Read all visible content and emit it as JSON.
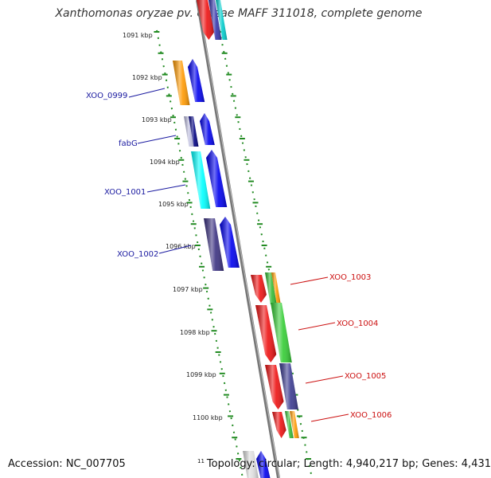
{
  "title": "Xanthomonas oryzae pv. oryzae MAFF 311018, complete genome",
  "accession": "Accession: NC_007705",
  "footer": {
    "superscript": "11",
    "topology": "Topology: circular; Length: 4,940,217 bp; Genes: 4,431"
  },
  "colors": {
    "backbone": "#888888",
    "ticks": "#228b22",
    "left_label": "#1a1aa0",
    "right_label": "#cc1111"
  },
  "kbp_labels": [
    "1091 kbp",
    "1092 kbp",
    "1093 kbp",
    "1094 kbp",
    "1095 kbp",
    "1096 kbp",
    "1097 kbp",
    "1098 kbp",
    "1099 kbp",
    "1100 kbp"
  ],
  "gene_labels_left": [
    "XOO_0999",
    "fabG",
    "XOO_1001",
    "XOO_1002"
  ],
  "gene_labels_right": [
    "XOO_1003",
    "XOO_1004",
    "XOO_1005",
    "XOO_1006"
  ]
}
